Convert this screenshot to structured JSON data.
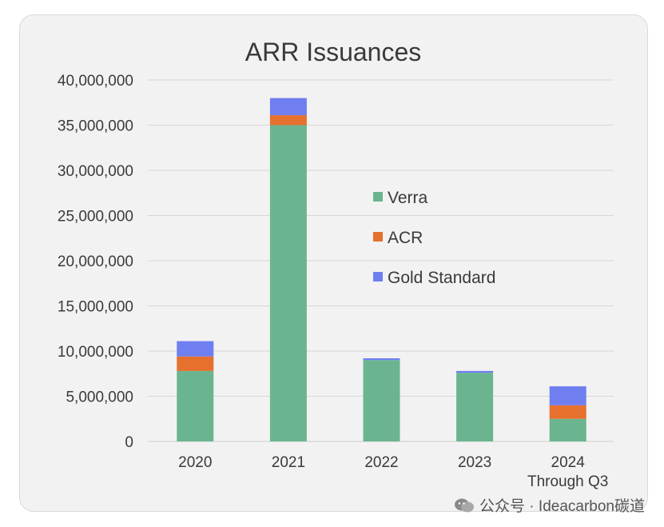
{
  "chart_data": {
    "type": "bar",
    "stacked": true,
    "title": "ARR Issuances",
    "categories": [
      "2020",
      "2021",
      "2022",
      "2023",
      "2024\nThrough Q3"
    ],
    "series": [
      {
        "name": "Verra",
        "color": "#6ab58f",
        "values": [
          7800000,
          35000000,
          9000000,
          7600000,
          2500000
        ]
      },
      {
        "name": "ACR",
        "color": "#e6702e",
        "values": [
          1600000,
          1100000,
          0,
          0,
          1500000
        ]
      },
      {
        "name": "Gold Standard",
        "color": "#6f7ff0",
        "values": [
          1700000,
          1900000,
          200000,
          200000,
          2100000
        ]
      }
    ],
    "ylim": [
      0,
      40000000
    ],
    "yticks": [
      "0",
      "5,000,000",
      "10,000,000",
      "15,000,000",
      "20,000,000",
      "25,000,000",
      "30,000,000",
      "35,000,000",
      "40,000,000"
    ],
    "grid": true,
    "legend": "center-right"
  },
  "watermark": {
    "text": "公众号 · Ideacarbon碳道"
  }
}
